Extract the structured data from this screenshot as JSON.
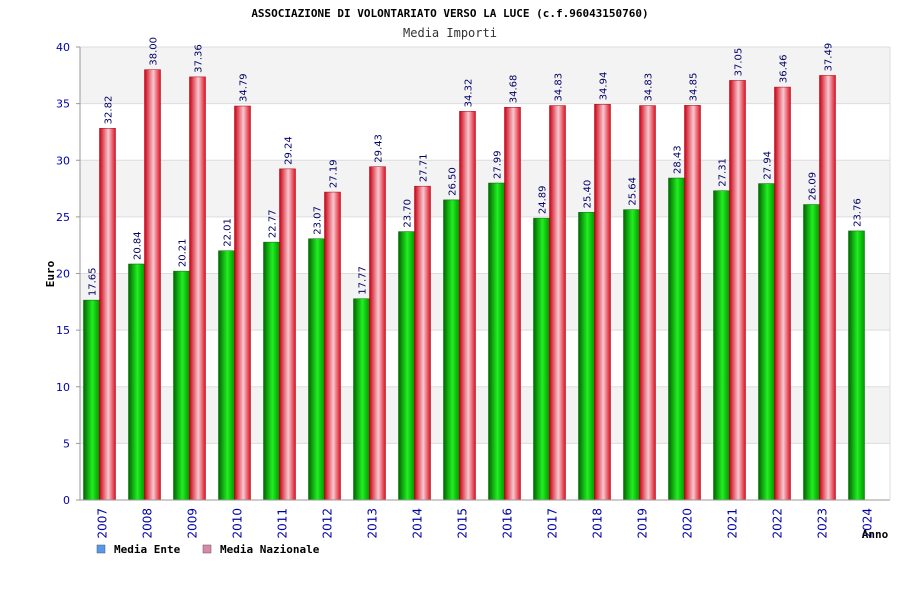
{
  "chart_data": {
    "type": "bar",
    "title": "ASSOCIAZIONE DI VOLONTARIATO VERSO LA LUCE (c.f.96043150760)",
    "subtitle": "Media Importi",
    "xlabel": "Anno",
    "ylabel": "Euro",
    "ylim": [
      0,
      40
    ],
    "yticks": [
      0,
      5,
      10,
      15,
      20,
      25,
      30,
      35,
      40
    ],
    "grid": true,
    "legend_position": "bottom-left",
    "categories": [
      "2007",
      "2008",
      "2009",
      "2010",
      "2011",
      "2012",
      "2013",
      "2014",
      "2015",
      "2016",
      "2017",
      "2018",
      "2019",
      "2020",
      "2021",
      "2022",
      "2023",
      "2024"
    ],
    "series": [
      {
        "name": "Media Ente",
        "legend_color": "#5599ee",
        "bar_color": "#00cc00",
        "values": [
          17.65,
          20.84,
          20.21,
          22.01,
          22.77,
          23.07,
          17.77,
          23.7,
          26.5,
          27.99,
          24.89,
          25.4,
          25.64,
          28.43,
          27.31,
          27.94,
          26.09,
          23.76
        ],
        "labels": [
          "17.65",
          "20.84",
          "20.21",
          "22.01",
          "22.77",
          "23.07",
          "17.77",
          "23.70",
          "26.50",
          "27.99",
          "24.89",
          "25.40",
          "25.64",
          "28.43",
          "27.31",
          "27.94",
          "26.09",
          "23.76"
        ]
      },
      {
        "name": "Media Nazionale",
        "legend_color": "#dd88aa",
        "bar_color": "#ee3344",
        "values": [
          32.82,
          38.0,
          37.36,
          34.79,
          29.24,
          27.19,
          29.43,
          27.71,
          34.32,
          34.68,
          34.83,
          34.94,
          34.83,
          34.85,
          37.05,
          36.46,
          37.49,
          null
        ],
        "labels": [
          "32.82",
          "38.00",
          "37.36",
          "34.79",
          "29.24",
          "27.19",
          "29.43",
          "27.71",
          "34.32",
          "34.68",
          "34.83",
          "34.94",
          "34.83",
          "34.85",
          "37.05",
          "36.46",
          "37.49",
          null
        ]
      }
    ]
  }
}
